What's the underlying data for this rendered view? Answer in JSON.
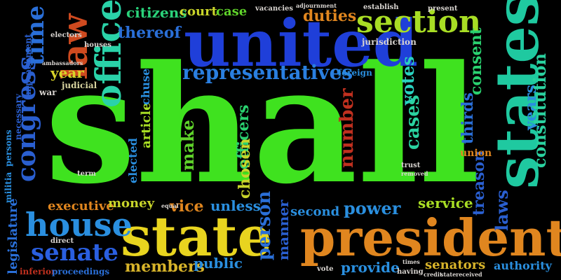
{
  "words": [
    {
      "text": "shall",
      "color": "#3fe21f"
    },
    {
      "text": "united",
      "color": "#1f3fd9"
    },
    {
      "text": "states",
      "color": "#1fc9a0"
    },
    {
      "text": "state",
      "color": "#e8d41f"
    },
    {
      "text": "president",
      "color": "#e0861f"
    },
    {
      "text": "section",
      "color": "#a8dd24"
    },
    {
      "text": "law",
      "color": "#cf4a1f"
    },
    {
      "text": "office",
      "color": "#2ad2a8"
    },
    {
      "text": "house",
      "color": "#2a8fdf"
    },
    {
      "text": "congress",
      "color": "#2a5fd0"
    },
    {
      "text": "representatives",
      "color": "#2a7fe0"
    },
    {
      "text": "senate",
      "color": "#2a5fe0"
    },
    {
      "text": "time",
      "color": "#2a6fd8"
    },
    {
      "text": "thereof",
      "color": "#2a6fd8"
    },
    {
      "text": "citizens",
      "color": "#2ad27a"
    },
    {
      "text": "court",
      "color": "#c8d42a"
    },
    {
      "text": "case",
      "color": "#5fd22a"
    },
    {
      "text": "duties",
      "color": "#e0861f"
    },
    {
      "text": "number",
      "color": "#c0301f"
    },
    {
      "text": "make",
      "color": "#5fd22a"
    },
    {
      "text": "votes",
      "color": "#2ad2c0"
    },
    {
      "text": "cases",
      "color": "#2ad2a0"
    },
    {
      "text": "consent",
      "color": "#2ad270"
    },
    {
      "text": "thirds",
      "color": "#2a6fd8"
    },
    {
      "text": "years",
      "color": "#2a8fdf"
    },
    {
      "text": "constitution",
      "color": "#2ad2a0"
    },
    {
      "text": "laws",
      "color": "#2a5fd0"
    },
    {
      "text": "treason",
      "color": "#2a5fd0"
    },
    {
      "text": "year",
      "color": "#d8d42a"
    },
    {
      "text": "executive",
      "color": "#e0861f"
    },
    {
      "text": "money",
      "color": "#c8d42a"
    },
    {
      "text": "vice",
      "color": "#e0861f"
    },
    {
      "text": "unless",
      "color": "#2a8fdf"
    },
    {
      "text": "power",
      "color": "#2a8fdf"
    },
    {
      "text": "second",
      "color": "#2a8fdf"
    },
    {
      "text": "service",
      "color": "#a8dd24"
    },
    {
      "text": "members",
      "color": "#d8b42a"
    },
    {
      "text": "public",
      "color": "#2a8fdf"
    },
    {
      "text": "person",
      "color": "#2a6fd8"
    },
    {
      "text": "manner",
      "color": "#2a5fd0"
    },
    {
      "text": "provide",
      "color": "#2a8fdf"
    },
    {
      "text": "senators",
      "color": "#d8b42a"
    },
    {
      "text": "authority",
      "color": "#2a8fdf"
    },
    {
      "text": "officers",
      "color": "#2ad270"
    },
    {
      "text": "chosen",
      "color": "#c8d42a"
    },
    {
      "text": "article",
      "color": "#a8dd24"
    },
    {
      "text": "elected",
      "color": "#2a8fdf"
    },
    {
      "text": "chuse",
      "color": "#2a8fdf"
    },
    {
      "text": "legislature",
      "color": "#2a6fd8"
    },
    {
      "text": "militia",
      "color": "#2a8fdf"
    },
    {
      "text": "persons",
      "color": "#2a8fdf"
    },
    {
      "text": "necessary",
      "color": "#2a5fd0"
    },
    {
      "text": "impeachment",
      "color": "#2a5fd0"
    },
    {
      "text": "judicial",
      "color": "#d8d4a0"
    },
    {
      "text": "war",
      "color": "#d8d4d0"
    },
    {
      "text": "jurisdiction",
      "color": "#d8d4d0"
    },
    {
      "text": "vacancies",
      "color": "#d8d4d0"
    },
    {
      "text": "adjournment",
      "color": "#d8d4d0"
    },
    {
      "text": "establish",
      "color": "#d8d4d0"
    },
    {
      "text": "present",
      "color": "#d8d4d0"
    },
    {
      "text": "electors",
      "color": "#d8d4d0"
    },
    {
      "text": "houses",
      "color": "#d8d4d0"
    },
    {
      "text": "ambassadors",
      "color": "#d8d4d0"
    },
    {
      "text": "foreign",
      "color": "#2a8fdf"
    },
    {
      "text": "union",
      "color": "#e0861f"
    },
    {
      "text": "inferior",
      "color": "#c0301f"
    },
    {
      "text": "proceedings",
      "color": "#2a6fd8"
    },
    {
      "text": "direct",
      "color": "#d8d4d0"
    },
    {
      "text": "term",
      "color": "#d8d4d0"
    },
    {
      "text": "trust",
      "color": "#d8d4d0"
    },
    {
      "text": "removed",
      "color": "#d8d4d0"
    },
    {
      "text": "equal",
      "color": "#d8d4d0"
    },
    {
      "text": "vote",
      "color": "#d8d4d0"
    },
    {
      "text": "having",
      "color": "#d8d4d0"
    },
    {
      "text": "times",
      "color": "#d8d4d0"
    },
    {
      "text": "credit",
      "color": "#d8d4d0"
    },
    {
      "text": "state",
      "color": "#d8d4d0"
    },
    {
      "text": "received",
      "color": "#d8d4d0"
    }
  ]
}
